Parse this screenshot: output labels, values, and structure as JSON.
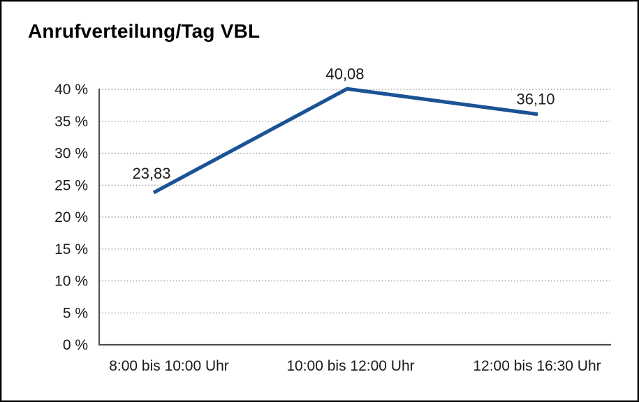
{
  "chart_data": {
    "type": "line",
    "title": "Anrufverteilung/Tag VBL",
    "categories": [
      "8:00 bis 10:00 Uhr",
      "10:00 bis 12:00 Uhr",
      "12:00 bis 16:30 Uhr"
    ],
    "values": [
      23.83,
      40.08,
      36.1
    ],
    "value_labels": [
      "23,83",
      "40,08",
      "36,10"
    ],
    "y_ticks": [
      "0 %",
      "5 %",
      "10 %",
      "15 %",
      "20 %",
      "25 %",
      "30 %",
      "35 %",
      "40 %"
    ],
    "y_tick_step": 5,
    "ylim": [
      0,
      40
    ],
    "xlabel": "",
    "ylabel": "",
    "legend": "none",
    "grid": "dotted-horizontal",
    "series_name": "Anrufverteilung/Tag VBL"
  },
  "colors": {
    "line": "#1a5296",
    "grid": "#8f8f8f",
    "x_axis": "#4d4d4d",
    "y_axis": "#2e2e2e",
    "text": "#1a1a1a",
    "border": "#000000",
    "background": "#ffffff"
  }
}
